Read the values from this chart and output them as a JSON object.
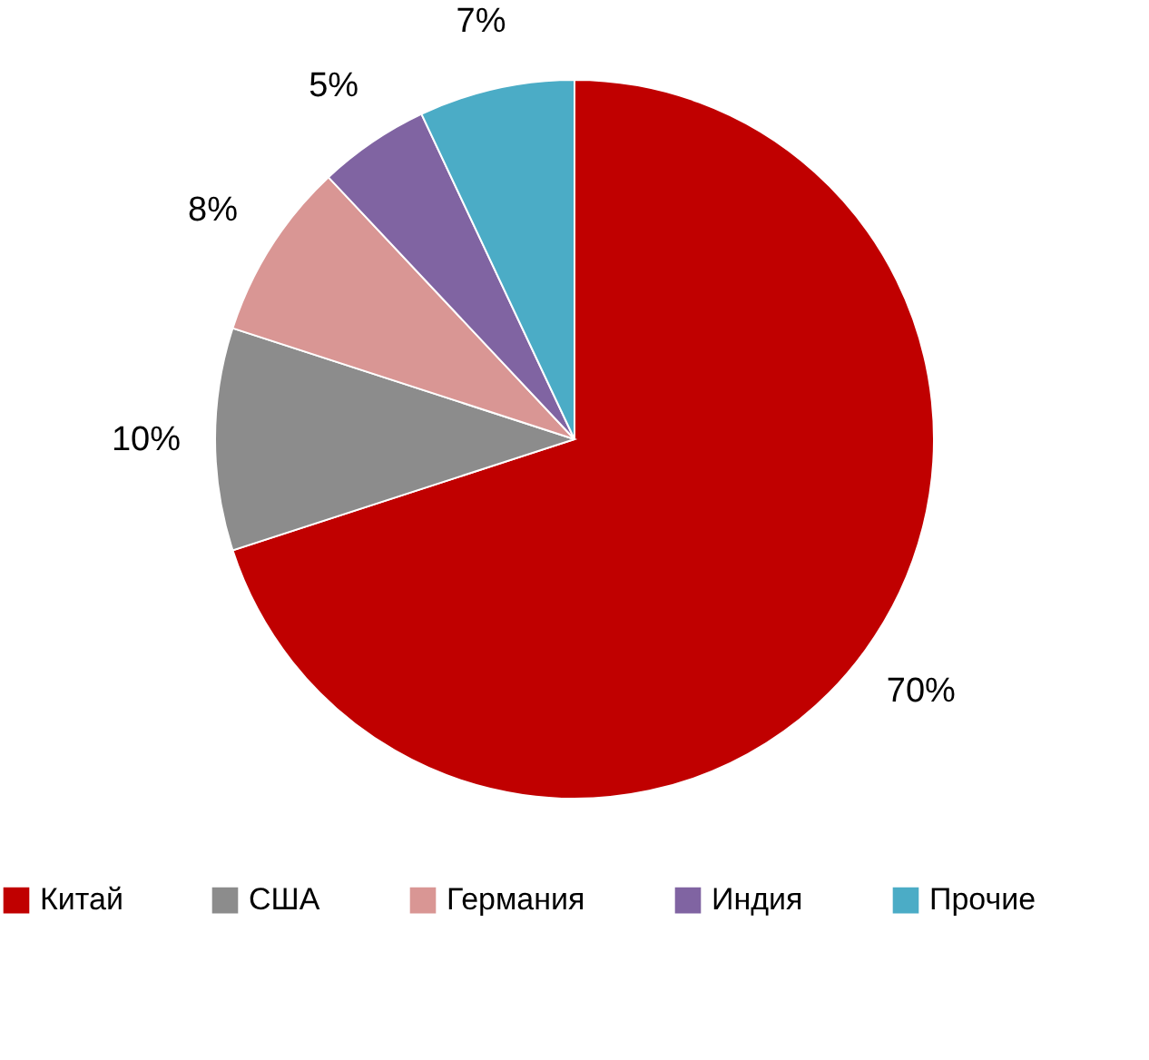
{
  "chart_data": {
    "type": "pie",
    "categories": [
      "Китай",
      "США",
      "Германия",
      "Индия",
      "Прочие"
    ],
    "values": [
      70,
      10,
      8,
      5,
      7
    ],
    "value_labels": [
      "70%",
      "10%",
      "8%",
      "5%",
      "7%"
    ],
    "colors": [
      "#c00000",
      "#8c8c8c",
      "#d99694",
      "#8064a2",
      "#4bacc6"
    ],
    "legend": "bottom"
  }
}
